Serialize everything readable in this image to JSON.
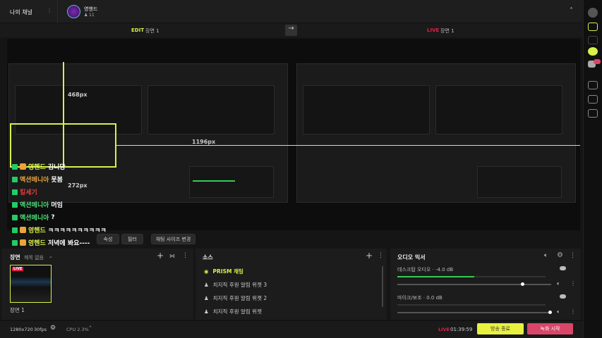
{
  "channel": {
    "title": "나의 채널",
    "more": "⋮"
  },
  "profile": {
    "name": "영헨드",
    "viewers": "11",
    "viewer_icon": "person-icon"
  },
  "modes": {
    "edit_badge": "EDIT",
    "edit_scene": "장면 1",
    "live_badge": "LIVE",
    "live_scene": "장면 1",
    "arrow": "→",
    "collapse": "˄"
  },
  "preview": {
    "width_label": "468px",
    "width_label2": "1196px",
    "height_label": "272px"
  },
  "chat": [
    {
      "name": "영헨드",
      "msg": "김니당",
      "name_color": "#d7f04a",
      "icon": "orange"
    },
    {
      "name": "액션메니아",
      "msg": "못봄",
      "name_color": "#e9a43a",
      "icon": "none"
    },
    {
      "name": "킬세기",
      "msg": "",
      "name_color": "#e04040",
      "icon": "none"
    },
    {
      "name": "액션메니아",
      "msg": "머임",
      "name_color": "#4be07a",
      "icon": "none"
    },
    {
      "name": "액션메니아",
      "msg": "?",
      "name_color": "#4be07a",
      "icon": "none"
    },
    {
      "name": "영헨드",
      "msg": "ㅋㅋㅋㅋㅋㅋㅋㅋㅋㅋ",
      "name_color": "#d7f04a",
      "icon": "orange"
    },
    {
      "name": "영헨드",
      "msg": "저녁에 봐요----",
      "name_color": "#d7f04a",
      "icon": "orange"
    }
  ],
  "source_toolbar": {
    "properties": "속성",
    "filter": "필터",
    "chat_size": "채팅 사이즈 변경"
  },
  "scenes": {
    "title": "장면",
    "collection": "제목 없음",
    "live_badge": "LIVE",
    "item": "장면 1"
  },
  "sources": {
    "title": "소스",
    "items": [
      "PRISM 채팅",
      "치지직 후원 알림 위젯 3",
      "치지직 후원 알림 위젯 2",
      "치지직 후원 알림 위젯"
    ]
  },
  "audio": {
    "title": "오디오 믹서",
    "channels": [
      {
        "name": "데스크탑 오디오",
        "db": "-4.0 dB",
        "level": 0.52,
        "volume": 0.82
      },
      {
        "name": "마이크/보조",
        "db": "0.0 dB",
        "level": 0,
        "volume": 1.0
      }
    ]
  },
  "status": {
    "resolution": "1280x720",
    "fps": "30fps",
    "cpu": "CPU 2.3%",
    "live_label": "LIVE",
    "live_time": "01:39:59",
    "end_broadcast": "방송 종료",
    "start_recording": "녹화 시작"
  },
  "colors": {
    "accent": "#d7f04a",
    "live": "#e0204a",
    "record": "#d9466a"
  }
}
